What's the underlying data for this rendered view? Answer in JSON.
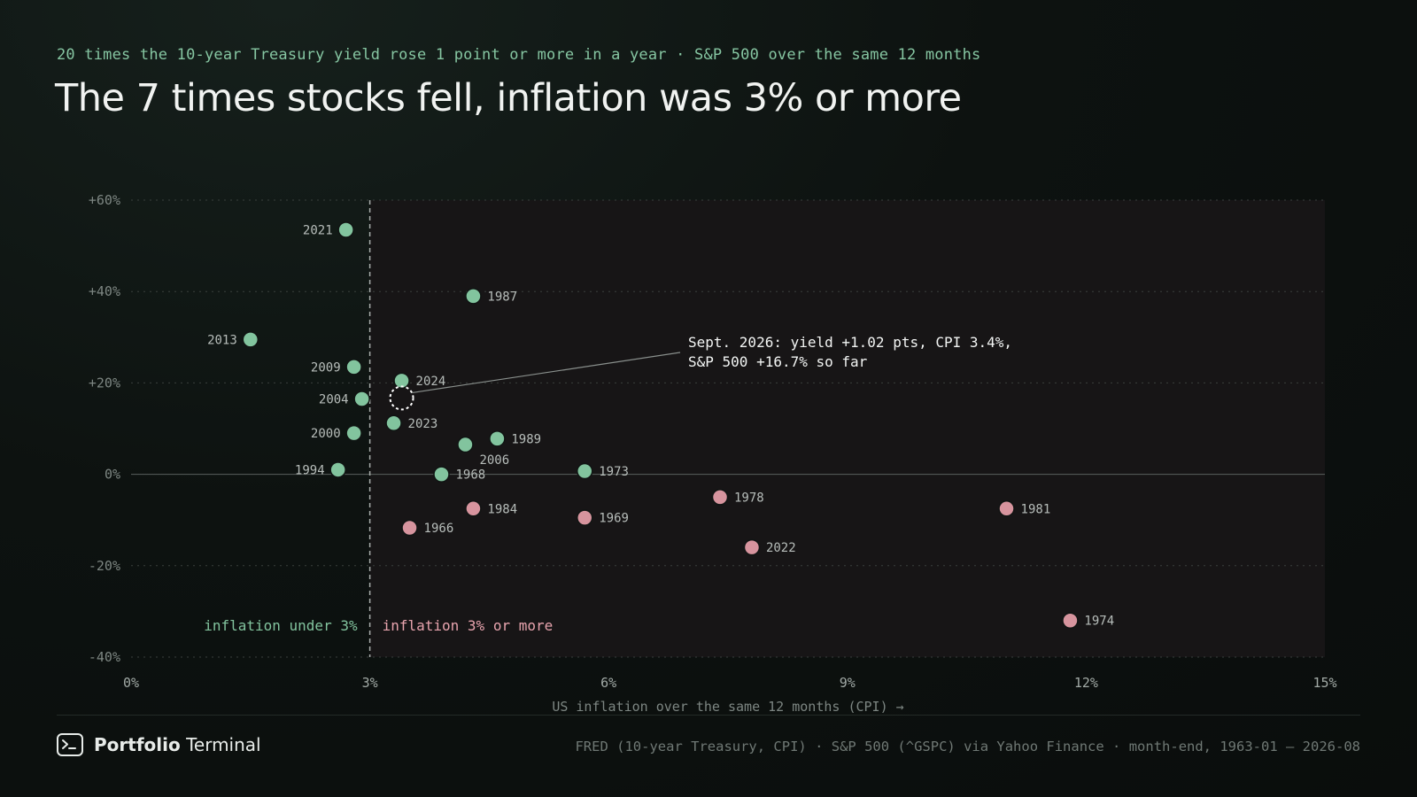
{
  "header": {
    "kicker": "20 times the 10-year Treasury yield rose 1 point or more in a year · S&P 500 over the same 12 months",
    "title": "The 7 times stocks fell, inflation was 3% or more"
  },
  "chart_data": {
    "type": "scatter",
    "xlabel": "US inflation over the same 12 months (CPI) →",
    "ylabel": "",
    "xlim": [
      0,
      15
    ],
    "ylim": [
      -40,
      60
    ],
    "x_ticks": [
      {
        "value": 0,
        "label": "0%"
      },
      {
        "value": 3,
        "label": "3%"
      },
      {
        "value": 6,
        "label": "6%"
      },
      {
        "value": 9,
        "label": "9%"
      },
      {
        "value": 12,
        "label": "12%"
      },
      {
        "value": 15,
        "label": "15%"
      }
    ],
    "y_ticks": [
      {
        "value": 60,
        "label": "+60%"
      },
      {
        "value": 40,
        "label": "+40%"
      },
      {
        "value": 20,
        "label": "+20%"
      },
      {
        "value": 0,
        "label": "0%"
      },
      {
        "value": -20,
        "label": "-20%"
      },
      {
        "value": -40,
        "label": "-40%"
      }
    ],
    "threshold": {
      "x": 3,
      "left_label": "inflation under 3%",
      "right_label": "inflation 3% or more"
    },
    "colors": {
      "positive": "#82c49e",
      "negative": "#d7949e",
      "shaded_region": "#171516",
      "left_label": "#82c49e",
      "right_label": "#e8a4ae"
    },
    "points": [
      {
        "year": "2021",
        "x": 2.7,
        "y": 53.5,
        "label_side": "left"
      },
      {
        "year": "1987",
        "x": 4.3,
        "y": 39.0,
        "label_side": "right"
      },
      {
        "year": "2013",
        "x": 1.5,
        "y": 29.5,
        "label_side": "left"
      },
      {
        "year": "2009",
        "x": 2.8,
        "y": 23.5,
        "label_side": "left"
      },
      {
        "year": "2024",
        "x": 3.4,
        "y": 20.5,
        "label_side": "right"
      },
      {
        "year": "2004",
        "x": 2.9,
        "y": 16.5,
        "label_side": "left"
      },
      {
        "year": "2023",
        "x": 3.3,
        "y": 11.2,
        "label_side": "right"
      },
      {
        "year": "2000",
        "x": 2.8,
        "y": 9.0,
        "label_side": "left"
      },
      {
        "year": "1989",
        "x": 4.6,
        "y": 7.8,
        "label_side": "right"
      },
      {
        "year": "2006",
        "x": 4.2,
        "y": 6.5,
        "label_side": "below"
      },
      {
        "year": "1994",
        "x": 2.6,
        "y": 1.0,
        "label_side": "left"
      },
      {
        "year": "1973",
        "x": 5.7,
        "y": 0.7,
        "label_side": "right"
      },
      {
        "year": "1968",
        "x": 3.9,
        "y": 0.0,
        "label_side": "right"
      },
      {
        "year": "1978",
        "x": 7.4,
        "y": -5.0,
        "label_side": "right"
      },
      {
        "year": "1984",
        "x": 4.3,
        "y": -7.5,
        "label_side": "right"
      },
      {
        "year": "1981",
        "x": 11.0,
        "y": -7.5,
        "label_side": "right"
      },
      {
        "year": "1969",
        "x": 5.7,
        "y": -9.5,
        "label_side": "right"
      },
      {
        "year": "1966",
        "x": 3.5,
        "y": -11.7,
        "label_side": "right"
      },
      {
        "year": "2022",
        "x": 7.8,
        "y": -16.0,
        "label_side": "right"
      },
      {
        "year": "1974",
        "x": 11.8,
        "y": -32.0,
        "label_side": "right"
      }
    ],
    "current": {
      "x": 3.4,
      "y": 16.7,
      "annotation_lines": [
        "Sept. 2026: yield +1.02 pts, CPI 3.4%,",
        "S&P 500 +16.7% so far"
      ]
    }
  },
  "footer": {
    "brand_bold": "Portfolio",
    "brand_light": "Terminal",
    "brand_icon": "terminal-icon",
    "source": "FRED (10-year Treasury, CPI) · S&P 500 (^GSPC) via Yahoo Finance · month-end, 1963-01 – 2026-08"
  }
}
